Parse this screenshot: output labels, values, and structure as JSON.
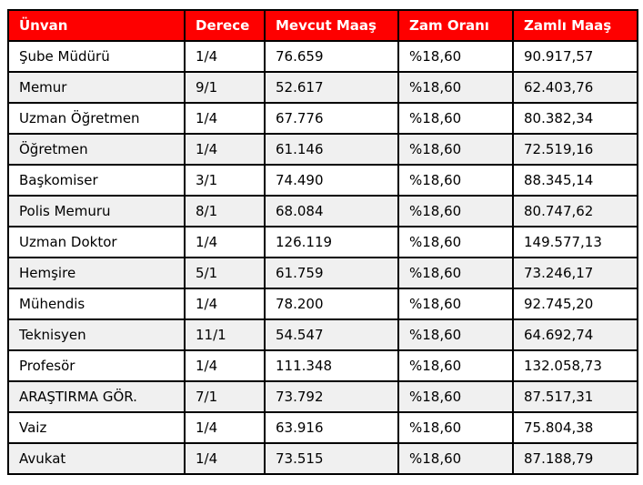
{
  "chart_data": {
    "type": "table",
    "columns": [
      "Ünvan",
      "Derece",
      "Mevcut Maaş",
      "Zam Oranı",
      "Zamlı Maaş"
    ],
    "rows": [
      [
        "Şube Müdürü",
        "1/4",
        "76.659",
        "%18,60",
        "90.917,57"
      ],
      [
        "Memur",
        "9/1",
        "52.617",
        "%18,60",
        "62.403,76"
      ],
      [
        "Uzman Öğretmen",
        "1/4",
        "67.776",
        "%18,60",
        "80.382,34"
      ],
      [
        "Öğretmen",
        "1/4",
        "61.146",
        "%18,60",
        "72.519,16"
      ],
      [
        "Başkomiser",
        "3/1",
        "74.490",
        "%18,60",
        "88.345,14"
      ],
      [
        "Polis Memuru",
        "8/1",
        "68.084",
        "%18,60",
        "80.747,62"
      ],
      [
        "Uzman Doktor",
        "1/4",
        "126.119",
        "%18,60",
        "149.577,13"
      ],
      [
        "Hemşire",
        "5/1",
        "61.759",
        "%18,60",
        "73.246,17"
      ],
      [
        "Mühendis",
        "1/4",
        "78.200",
        "%18,60",
        "92.745,20"
      ],
      [
        "Teknisyen",
        "11/1",
        "54.547",
        "%18,60",
        "64.692,74"
      ],
      [
        "Profesör",
        "1/4",
        "111.348",
        "%18,60",
        "132.058,73"
      ],
      [
        "ARAŞTIRMA GÖR.",
        "7/1",
        "73.792",
        "%18,60",
        "87.517,31"
      ],
      [
        "Vaiz",
        "1/4",
        "63.916",
        "%18,60",
        "75.804,38"
      ],
      [
        "Avukat",
        "1/4",
        "73.515",
        "%18,60",
        "87.188,79"
      ]
    ],
    "raise_rate": "%18,60",
    "layout": {
      "row_striping": "alternating",
      "text_align": "left",
      "grid": "on"
    },
    "colors": {
      "header_bg": "#fe0000",
      "header_text": "#ffffff",
      "border": "#000000",
      "row_odd_bg": "#ffffff",
      "row_even_bg": "#f0f0f0",
      "cell_text": "#000000",
      "page_bg": "#ffffff"
    }
  }
}
